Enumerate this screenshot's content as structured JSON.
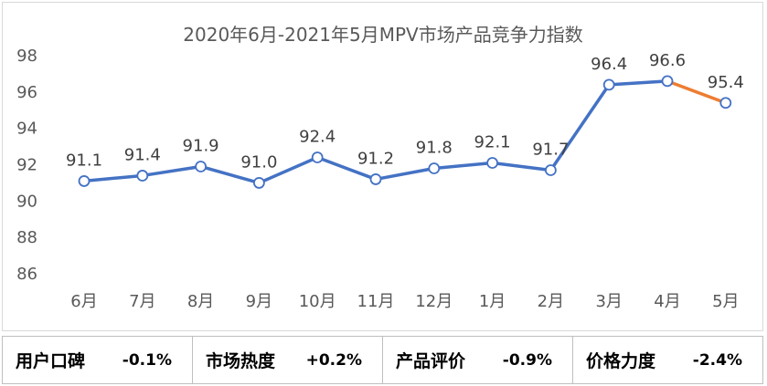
{
  "chart_data": {
    "type": "line",
    "title": "2020年6月-2021年5月MPV市场产品竞争力指数",
    "categories": [
      "6月",
      "7月",
      "8月",
      "9月",
      "10月",
      "11月",
      "12月",
      "1月",
      "2月",
      "3月",
      "4月",
      "5月"
    ],
    "series": [
      {
        "values": [
          91.1,
          91.4,
          91.9,
          91.0,
          92.4,
          91.2,
          91.8,
          92.1,
          91.7,
          96.4,
          96.6,
          95.4
        ]
      }
    ],
    "data_labels": [
      "91.1",
      "91.4",
      "91.9",
      "91.0",
      "92.4",
      "91.2",
      "91.8",
      "92.1",
      "91.7",
      "96.4",
      "96.6",
      "95.4"
    ],
    "yticks": [
      "86",
      "88",
      "90",
      "92",
      "94",
      "96",
      "98"
    ],
    "ylim": [
      86,
      98
    ],
    "grid": false,
    "colors": {
      "line": "#4472C4",
      "last_segment": "#ED7D31",
      "drop_line": "#BDD7EE"
    }
  },
  "metrics": [
    {
      "name": "用户口碑",
      "value": "-0.1%"
    },
    {
      "name": "市场热度",
      "value": "+0.2%"
    },
    {
      "name": "产品评价",
      "value": "-0.9%"
    },
    {
      "name": "价格力度",
      "value": "-2.4%"
    }
  ]
}
